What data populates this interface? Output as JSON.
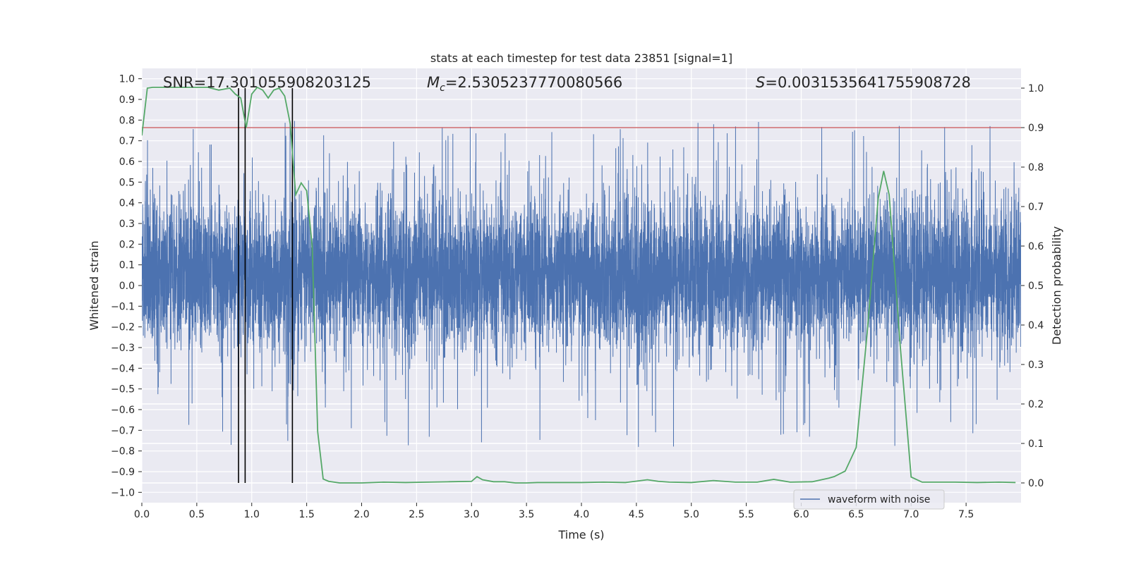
{
  "chart_data": {
    "type": "line",
    "title": "stats at each timestep for test data 23851 [signal=1]",
    "xlabel": "Time (s)",
    "ylabel_left": "Whitened strain",
    "ylabel_right": "Detection probability",
    "xlim": [
      0.0,
      8.0
    ],
    "ylim_left": [
      -1.05,
      1.05
    ],
    "ylim_right": [
      -0.05,
      1.05
    ],
    "x_ticks": [
      "0.0",
      "0.5",
      "1.0",
      "1.5",
      "2.0",
      "2.5",
      "3.0",
      "3.5",
      "4.0",
      "4.5",
      "5.0",
      "5.5",
      "6.0",
      "6.5",
      "7.0",
      "7.5"
    ],
    "y_left_ticks": [
      "−1.0",
      "−0.9",
      "−0.8",
      "−0.7",
      "−0.6",
      "−0.5",
      "−0.4",
      "−0.3",
      "−0.2",
      "−0.1",
      "0.0",
      "0.1",
      "0.2",
      "0.3",
      "0.4",
      "0.5",
      "0.6",
      "0.7",
      "0.8",
      "0.9",
      "1.0"
    ],
    "y_right_ticks": [
      "0.0",
      "0.1",
      "0.2",
      "0.3",
      "0.4",
      "0.5",
      "0.6",
      "0.7",
      "0.8",
      "0.9",
      "1.0"
    ],
    "grid": true,
    "annotations": {
      "snr": "SNR=17.301055908203125",
      "mc_symbol": "M",
      "mc_subscript": "c",
      "mc_value": "=2.5305237770080566",
      "s_symbol": "S",
      "s_value": "=0.0031535641755908728"
    },
    "threshold": {
      "value": 0.9,
      "axis": "right",
      "color": "#c44e52"
    },
    "vertical_markers": [
      0.88,
      0.94,
      1.37
    ],
    "series": [
      {
        "name": "waveform with noise",
        "axis": "left",
        "kind": "noise-waveform",
        "color": "#4c72b0",
        "sample_count": 8192,
        "typical_envelope": [
          -0.35,
          0.45
        ]
      },
      {
        "axis": "right",
        "kind": "line",
        "color": "#55a868",
        "x": [
          0.0,
          0.05,
          0.1,
          0.2,
          0.3,
          0.4,
          0.5,
          0.6,
          0.7,
          0.8,
          0.85,
          0.9,
          0.95,
          1.0,
          1.05,
          1.1,
          1.15,
          1.2,
          1.25,
          1.3,
          1.35,
          1.4,
          1.45,
          1.5,
          1.55,
          1.6,
          1.65,
          1.7,
          1.75,
          1.8,
          1.9,
          2.0,
          2.2,
          2.4,
          2.6,
          2.8,
          3.0,
          3.05,
          3.1,
          3.2,
          3.3,
          3.4,
          3.5,
          3.6,
          3.8,
          4.0,
          4.2,
          4.4,
          4.6,
          4.7,
          4.8,
          5.0,
          5.2,
          5.4,
          5.6,
          5.75,
          5.9,
          6.1,
          6.25,
          6.3,
          6.4,
          6.5,
          6.6,
          6.7,
          6.75,
          6.8,
          6.9,
          7.0,
          7.1,
          7.2,
          7.4,
          7.6,
          7.8,
          7.95
        ],
        "y": [
          0.88,
          1.0,
          1.002,
          1.002,
          1.002,
          1.002,
          1.002,
          1.002,
          0.995,
          1.0,
          0.985,
          0.975,
          0.9,
          0.985,
          1.002,
          0.995,
          0.975,
          0.995,
          1.0,
          0.98,
          0.91,
          0.73,
          0.76,
          0.74,
          0.6,
          0.13,
          0.01,
          0.004,
          0.002,
          0.0,
          0.0,
          0.0,
          0.002,
          0.001,
          0.002,
          0.003,
          0.004,
          0.016,
          0.008,
          0.003,
          0.003,
          0.0,
          0.0,
          0.001,
          0.001,
          0.001,
          0.002,
          0.001,
          0.008,
          0.004,
          0.002,
          0.001,
          0.006,
          0.002,
          0.002,
          0.009,
          0.002,
          0.003,
          0.012,
          0.016,
          0.03,
          0.09,
          0.38,
          0.72,
          0.79,
          0.73,
          0.35,
          0.015,
          0.002,
          0.002,
          0.002,
          0.001,
          0.002,
          0.001
        ]
      }
    ],
    "legend": {
      "placement": "bottom-right",
      "label": "waveform with noise"
    }
  }
}
